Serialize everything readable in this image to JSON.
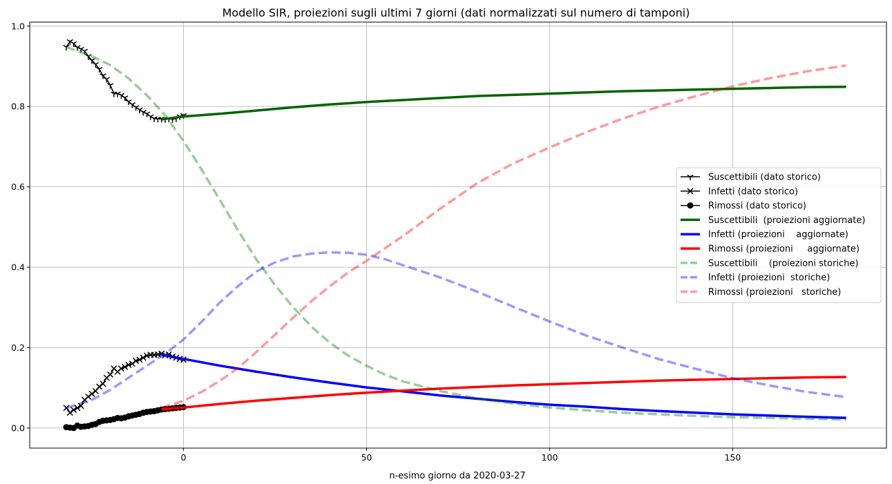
{
  "chart_data": {
    "type": "line",
    "title": "Modello SIR, proiezioni sugli ultimi 7 giorni (dati normalizzati sul numero di  tamponi)",
    "xlabel": "n-esimo giorno da 2020-03-27",
    "ylabel": "",
    "xlim": [
      -42,
      192
    ],
    "ylim": [
      -0.05,
      1.01
    ],
    "xticks": [
      0,
      50,
      100,
      150
    ],
    "yticks": [
      0.0,
      0.2,
      0.4,
      0.6,
      0.8,
      1.0
    ],
    "xtick_labels": [
      "0",
      "50",
      "100",
      "150"
    ],
    "ytick_labels": [
      "0.0",
      "0.2",
      "0.4",
      "0.6",
      "0.8",
      "1.0"
    ],
    "grid": true,
    "legend_position": "center-right",
    "series": [
      {
        "name": "Suscettibili (dato storico)",
        "color": "#000000",
        "style": "solid",
        "width": 1.5,
        "marker": "tri_down",
        "alpha": 1,
        "x": [
          -32,
          -31,
          -30,
          -29,
          -28,
          -27,
          -26,
          -25,
          -24,
          -23,
          -22,
          -21,
          -20,
          -19,
          -18,
          -17,
          -16,
          -15,
          -14,
          -13,
          -12,
          -11,
          -10,
          -9,
          -8,
          -7,
          -6,
          -5,
          -4,
          -3,
          -2,
          -1,
          0
        ],
        "y": [
          0.948,
          0.962,
          0.957,
          0.947,
          0.943,
          0.938,
          0.925,
          0.915,
          0.905,
          0.893,
          0.877,
          0.868,
          0.853,
          0.832,
          0.832,
          0.828,
          0.822,
          0.812,
          0.805,
          0.798,
          0.792,
          0.786,
          0.782,
          0.775,
          0.77,
          0.769,
          0.769,
          0.768,
          0.769,
          0.768,
          0.77,
          0.775,
          0.778
        ]
      },
      {
        "name": "Infetti (dato storico)",
        "color": "#000000",
        "style": "solid",
        "width": 1.5,
        "marker": "x",
        "alpha": 1,
        "x": [
          -32,
          -31,
          -30,
          -29,
          -28,
          -27,
          -26,
          -25,
          -24,
          -23,
          -22,
          -21,
          -20,
          -19,
          -18,
          -17,
          -16,
          -15,
          -14,
          -13,
          -12,
          -11,
          -10,
          -9,
          -8,
          -7,
          -6,
          -5,
          -4,
          -3,
          -2,
          -1,
          0
        ],
        "y": [
          0.05,
          0.038,
          0.045,
          0.05,
          0.055,
          0.07,
          0.078,
          0.085,
          0.092,
          0.103,
          0.11,
          0.125,
          0.133,
          0.148,
          0.14,
          0.148,
          0.152,
          0.157,
          0.16,
          0.167,
          0.17,
          0.175,
          0.18,
          0.182,
          0.182,
          0.183,
          0.185,
          0.181,
          0.183,
          0.178,
          0.175,
          0.172,
          0.17
        ]
      },
      {
        "name": "Rimossi (dato storico)",
        "color": "#000000",
        "style": "solid",
        "width": 1.5,
        "marker": "o",
        "alpha": 1,
        "x": [
          -32,
          -31,
          -30,
          -29,
          -28,
          -27,
          -26,
          -25,
          -24,
          -23,
          -22,
          -21,
          -20,
          -19,
          -18,
          -17,
          -16,
          -15,
          -14,
          -13,
          -12,
          -11,
          -10,
          -9,
          -8,
          -7,
          -6,
          -5,
          -4,
          -3,
          -2,
          -1,
          0
        ],
        "y": [
          0.002,
          0.001,
          0.0,
          0.006,
          0.003,
          0.004,
          0.005,
          0.008,
          0.01,
          0.015,
          0.018,
          0.019,
          0.02,
          0.022,
          0.025,
          0.024,
          0.026,
          0.029,
          0.031,
          0.033,
          0.035,
          0.038,
          0.04,
          0.041,
          0.042,
          0.044,
          0.046,
          0.047,
          0.048,
          0.049,
          0.05,
          0.051,
          0.052
        ]
      },
      {
        "name": "Suscettibili  (proiezioni aggiornate)",
        "color": "#006400",
        "style": "solid",
        "width": 3.5,
        "marker": "none",
        "alpha": 1,
        "x": [
          -6,
          0,
          10,
          20,
          30,
          40,
          50,
          60,
          70,
          80,
          90,
          100,
          110,
          120,
          130,
          140,
          150,
          160,
          170,
          181
        ],
        "y": [
          0.768,
          0.775,
          0.782,
          0.79,
          0.798,
          0.805,
          0.811,
          0.816,
          0.821,
          0.826,
          0.829,
          0.832,
          0.835,
          0.838,
          0.84,
          0.842,
          0.844,
          0.846,
          0.848,
          0.849
        ]
      },
      {
        "name": "Infetti (proiezioni    aggiornate)",
        "color": "#0000ff",
        "style": "solid",
        "width": 3.5,
        "marker": "none",
        "alpha": 1,
        "x": [
          -6,
          0,
          10,
          20,
          30,
          40,
          50,
          60,
          70,
          80,
          90,
          100,
          110,
          120,
          130,
          140,
          150,
          160,
          170,
          181
        ],
        "y": [
          0.182,
          0.172,
          0.155,
          0.14,
          0.126,
          0.113,
          0.101,
          0.091,
          0.081,
          0.073,
          0.065,
          0.058,
          0.053,
          0.047,
          0.042,
          0.038,
          0.034,
          0.031,
          0.028,
          0.025
        ]
      },
      {
        "name": "Rimossi (proiezioni     aggiornate)",
        "color": "#ff0000",
        "style": "solid",
        "width": 3.5,
        "marker": "none",
        "alpha": 1,
        "x": [
          -6,
          0,
          10,
          20,
          30,
          40,
          50,
          60,
          70,
          80,
          90,
          100,
          110,
          120,
          130,
          140,
          150,
          160,
          170,
          181
        ],
        "y": [
          0.046,
          0.051,
          0.06,
          0.068,
          0.075,
          0.082,
          0.088,
          0.093,
          0.098,
          0.102,
          0.106,
          0.109,
          0.112,
          0.115,
          0.118,
          0.12,
          0.122,
          0.124,
          0.126,
          0.127
        ]
      },
      {
        "name": "Suscettibili    (proiezioni storiche)",
        "color": "#008000",
        "style": "dashed",
        "width": 3.5,
        "marker": "none",
        "alpha": 0.4,
        "x": [
          -32,
          -25,
          -20,
          -15,
          -10,
          -5,
          0,
          5,
          10,
          15,
          20,
          25,
          30,
          35,
          40,
          45,
          50,
          55,
          60,
          70,
          80,
          90,
          100,
          110,
          120,
          130,
          140,
          150,
          160,
          170,
          181
        ],
        "y": [
          0.948,
          0.925,
          0.903,
          0.87,
          0.828,
          0.778,
          0.714,
          0.642,
          0.566,
          0.49,
          0.418,
          0.356,
          0.3,
          0.252,
          0.212,
          0.18,
          0.155,
          0.133,
          0.116,
          0.092,
          0.074,
          0.061,
          0.051,
          0.044,
          0.038,
          0.034,
          0.03,
          0.027,
          0.025,
          0.023,
          0.021
        ]
      },
      {
        "name": "Infetti (proiezioni  storiche)",
        "color": "#0000ff",
        "style": "dashed",
        "width": 3.5,
        "marker": "none",
        "alpha": 0.4,
        "x": [
          -32,
          -25,
          -20,
          -15,
          -10,
          -5,
          0,
          5,
          10,
          15,
          20,
          25,
          30,
          35,
          40,
          45,
          50,
          55,
          60,
          70,
          80,
          90,
          100,
          110,
          120,
          130,
          140,
          150,
          160,
          170,
          181
        ],
        "y": [
          0.05,
          0.07,
          0.095,
          0.125,
          0.155,
          0.185,
          0.22,
          0.265,
          0.313,
          0.354,
          0.39,
          0.412,
          0.427,
          0.434,
          0.437,
          0.436,
          0.431,
          0.42,
          0.405,
          0.375,
          0.34,
          0.302,
          0.265,
          0.23,
          0.2,
          0.171,
          0.147,
          0.124,
          0.106,
          0.09,
          0.077
        ]
      },
      {
        "name": "Rimossi (proiezioni   storiche)",
        "color": "#ff0000",
        "style": "dashed",
        "width": 3.5,
        "marker": "none",
        "alpha": 0.4,
        "x": [
          -6,
          0,
          5,
          10,
          15,
          20,
          25,
          30,
          35,
          40,
          45,
          50,
          55,
          60,
          70,
          80,
          90,
          100,
          110,
          120,
          130,
          140,
          150,
          160,
          170,
          181
        ],
        "y": [
          0.05,
          0.068,
          0.09,
          0.118,
          0.15,
          0.19,
          0.232,
          0.275,
          0.316,
          0.353,
          0.387,
          0.416,
          0.447,
          0.478,
          0.545,
          0.608,
          0.658,
          0.698,
          0.736,
          0.77,
          0.8,
          0.826,
          0.85,
          0.87,
          0.887,
          0.902
        ]
      }
    ]
  }
}
